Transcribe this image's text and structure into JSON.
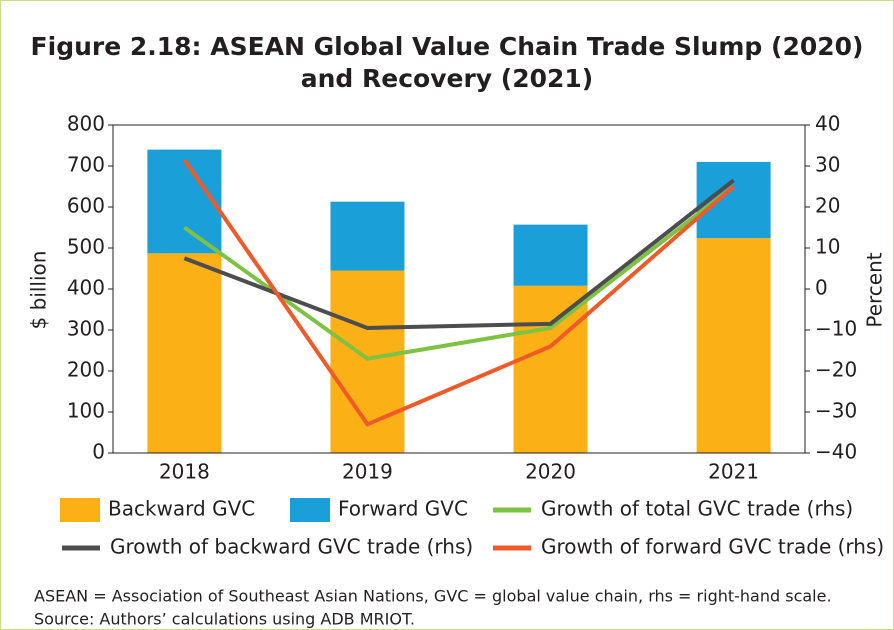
{
  "chart_data": {
    "type": "bar",
    "title": [
      "Figure 2.18: ASEAN Global Value Chain Trade Slump (2020)",
      "and Recovery (2021)"
    ],
    "categories": [
      "2018",
      "2019",
      "2020",
      "2021"
    ],
    "series": [
      {
        "name": "Backward GVC",
        "type": "bar",
        "stack": "gvc",
        "color": "#fbb016",
        "values": [
          487,
          445,
          408,
          524
        ]
      },
      {
        "name": "Forward GVC",
        "type": "bar",
        "stack": "gvc",
        "color": "#1a9fd9",
        "values": [
          253,
          168,
          149,
          186
        ]
      },
      {
        "name": "Growth of total GVC trade (rhs)",
        "type": "line",
        "axis": "y2",
        "color": "#7dc242",
        "values": [
          15,
          -17,
          -9.5,
          25
        ]
      },
      {
        "name": "Growth of backward GVC trade (rhs)",
        "type": "line",
        "axis": "y2",
        "color": "#4d4d4f",
        "values": [
          7.5,
          -9.5,
          -8.5,
          26.5
        ]
      },
      {
        "name": "Growth of forward GVC trade (rhs)",
        "type": "line",
        "axis": "y2",
        "color": "#ef5a28",
        "values": [
          31.5,
          -33,
          -14,
          25
        ]
      }
    ],
    "ylabel": "$ billion",
    "y2label": "Percent",
    "ylim": [
      0,
      800
    ],
    "yticks": [
      0,
      100,
      200,
      300,
      400,
      500,
      600,
      700,
      800
    ],
    "y2lim": [
      -40,
      40
    ],
    "y2ticks": [
      {
        "value": -40,
        "label": "−40"
      },
      {
        "value": -30,
        "label": "−30"
      },
      {
        "value": -20,
        "label": "−20"
      },
      {
        "value": -10,
        "label": "−10"
      },
      0,
      10,
      20,
      30,
      40
    ],
    "notes": [
      "ASEAN = Association of Southeast Asian Nations, GVC = global value chain, rhs = right-hand scale.",
      "Source: Authors’ calculations using ADB MRIOT."
    ]
  }
}
